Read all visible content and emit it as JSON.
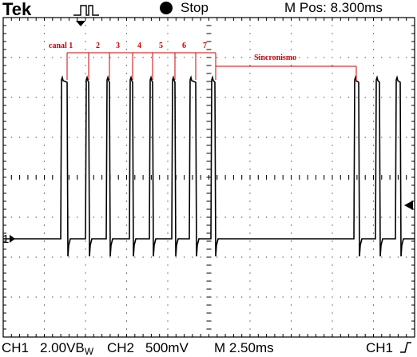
{
  "header": {
    "brand": "Tek",
    "status": "Stop",
    "mpos": "M Pos: 8.300ms"
  },
  "footer": {
    "ch1_label": "CH1",
    "ch1_scale": "2.00VB",
    "bw_suffix": "W",
    "ch2_label": "CH2",
    "ch2_scale": "500mV",
    "timebase": "M 2.50ms",
    "trig_source": "CH1"
  },
  "screen": {
    "channel_marker": "1",
    "annotations": {
      "channel_prefix": "canal 1",
      "channels": [
        "2",
        "3",
        "4",
        "5",
        "6",
        "7"
      ],
      "sync": "Sincronismo"
    }
  },
  "colors": {
    "annotation": "#d00000",
    "trace": "#000000",
    "grid": "#000000"
  }
}
